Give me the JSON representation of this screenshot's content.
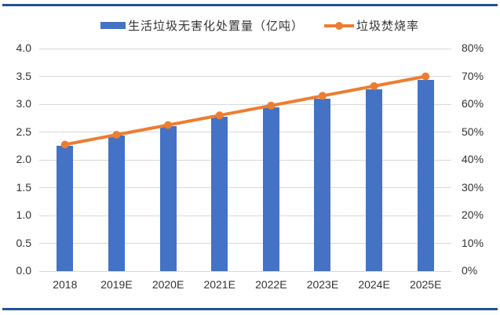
{
  "page": {
    "background": "#FFFFFF",
    "rule_color": "#1F5496"
  },
  "legend": {
    "position": "top",
    "items": [
      {
        "label": "生活垃圾无害化处置量（亿吨）",
        "marker": "bar-swatch",
        "color": "#4472C4"
      },
      {
        "label": "垃圾焚烧率",
        "marker": "line-with-dot-swatch",
        "color": "#ED7D31"
      }
    ]
  },
  "chart_data": {
    "type": "bar+line",
    "categories": [
      "2018",
      "2019E",
      "2020E",
      "2021E",
      "2022E",
      "2023E",
      "2024E",
      "2025E"
    ],
    "series": [
      {
        "name": "生活垃圾无害化处置量（亿吨）",
        "chart": "bar",
        "axis": "left",
        "color": "#4472C4",
        "values": [
          2.26,
          2.43,
          2.6,
          2.77,
          2.94,
          3.1,
          3.27,
          3.44
        ]
      },
      {
        "name": "垃圾焚烧率",
        "chart": "line",
        "axis": "right",
        "color": "#ED7D31",
        "unit": "%",
        "values": [
          45.5,
          49.0,
          52.5,
          56.0,
          59.5,
          63.0,
          66.5,
          70.0
        ]
      }
    ],
    "left_axis": {
      "range": [
        0.0,
        4.0
      ],
      "step": 0.5,
      "labels": [
        "0.0",
        "0.5",
        "1.0",
        "1.5",
        "2.0",
        "2.5",
        "3.0",
        "3.5",
        "4.0"
      ]
    },
    "right_axis": {
      "range": [
        0,
        80
      ],
      "step": 10,
      "labels": [
        "0%",
        "10%",
        "20%",
        "30%",
        "40%",
        "50%",
        "60%",
        "70%",
        "80%"
      ]
    },
    "grid": true,
    "gridline_color": "#D9D9D9",
    "legend_position": "top",
    "title": ""
  }
}
